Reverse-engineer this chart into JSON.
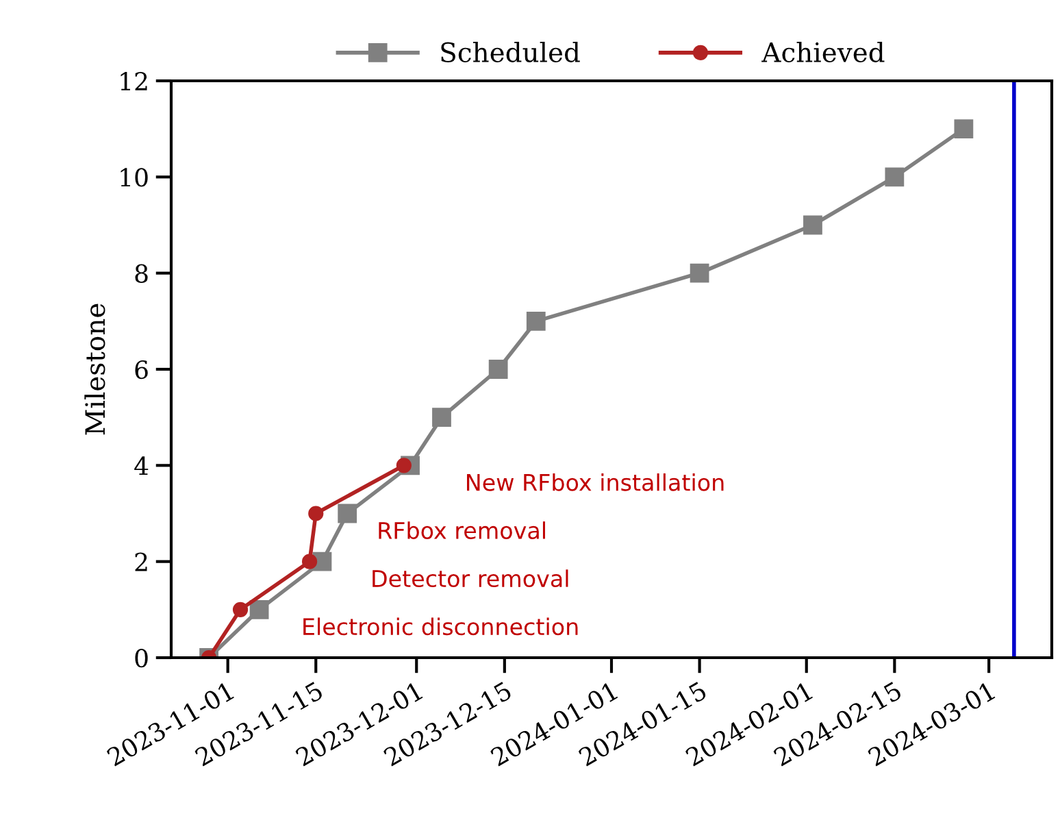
{
  "chart_data": {
    "type": "line",
    "ylabel": "Milestone",
    "series": [
      {
        "name": "Scheduled",
        "color": "#808080",
        "marker": "square",
        "x": [
          "2023-10-29",
          "2023-11-06",
          "2023-11-16",
          "2023-11-20",
          "2023-11-30",
          "2023-12-05",
          "2023-12-14",
          "2023-12-20",
          "2024-01-15",
          "2024-02-02",
          "2024-02-15",
          "2024-02-26"
        ],
        "values": [
          0,
          1,
          2,
          3,
          4,
          5,
          6,
          7,
          8,
          9,
          10,
          11
        ]
      },
      {
        "name": "Achieved",
        "color": "#b22222",
        "marker": "circle",
        "x": [
          "2023-10-29",
          "2023-11-03",
          "2023-11-14",
          "2023-11-15",
          "2023-11-29"
        ],
        "values": [
          0,
          1,
          2,
          3,
          4
        ]
      }
    ],
    "xlim": [
      "2023-10-23",
      "2024-03-11"
    ],
    "ylim": [
      0,
      12
    ],
    "xticks": [
      "2023-11-01",
      "2023-11-15",
      "2023-12-01",
      "2023-12-15",
      "2024-01-01",
      "2024-01-15",
      "2024-02-01",
      "2024-02-15",
      "2024-03-01"
    ],
    "yticks": [
      0,
      2,
      4,
      6,
      8,
      10,
      12
    ],
    "ref_lines": [
      {
        "axis": "x",
        "value": "2024-03-05",
        "color": "#0000cc"
      }
    ],
    "annotations": [
      {
        "text": "Electronic disconnection",
        "x": "2023-11-03",
        "y": 1
      },
      {
        "text": "Detector removal",
        "x": "2023-11-14",
        "y": 2
      },
      {
        "text": "RFbox removal",
        "x": "2023-11-15",
        "y": 3
      },
      {
        "text": "New RFbox installation",
        "x": "2023-11-29",
        "y": 4
      }
    ],
    "legend": "top",
    "grid": false
  }
}
